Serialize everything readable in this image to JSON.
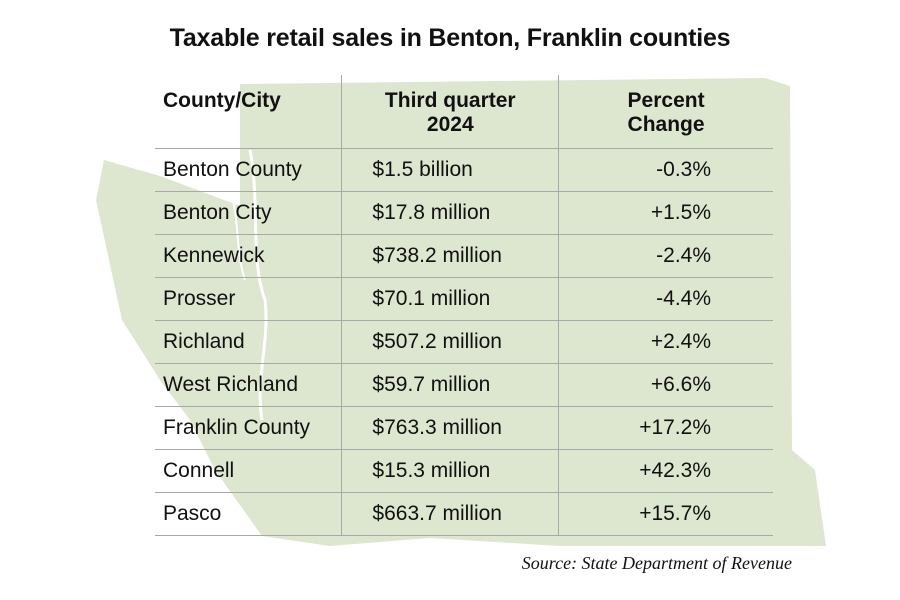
{
  "title": "Taxable retail sales in Benton, Franklin counties",
  "source": "Source: State Department of Revenue",
  "colors": {
    "map_fill": "#dde6cf",
    "grid": "#a8a8a8"
  },
  "chart_data": {
    "type": "table",
    "title": "Taxable retail sales in Benton, Franklin counties",
    "columns": [
      "County/City",
      "Third quarter 2024",
      "Percent Change"
    ],
    "rows": [
      [
        "Benton County",
        "$1.5 billion",
        "-0.3%"
      ],
      [
        "Benton City",
        "$17.8 million",
        "+1.5%"
      ],
      [
        "Kennewick",
        "$738.2 million",
        "-2.4%"
      ],
      [
        "Prosser",
        "$70.1 million",
        "-4.4%"
      ],
      [
        "Richland",
        "$507.2 million",
        "+2.4%"
      ],
      [
        "West Richland",
        "$59.7 million",
        "+6.6%"
      ],
      [
        "Franklin County",
        "$763.3 million",
        "+17.2%"
      ],
      [
        "Connell",
        "$15.3 million",
        "+42.3%"
      ],
      [
        "Pasco",
        "$663.7 million",
        "+15.7%"
      ]
    ]
  }
}
